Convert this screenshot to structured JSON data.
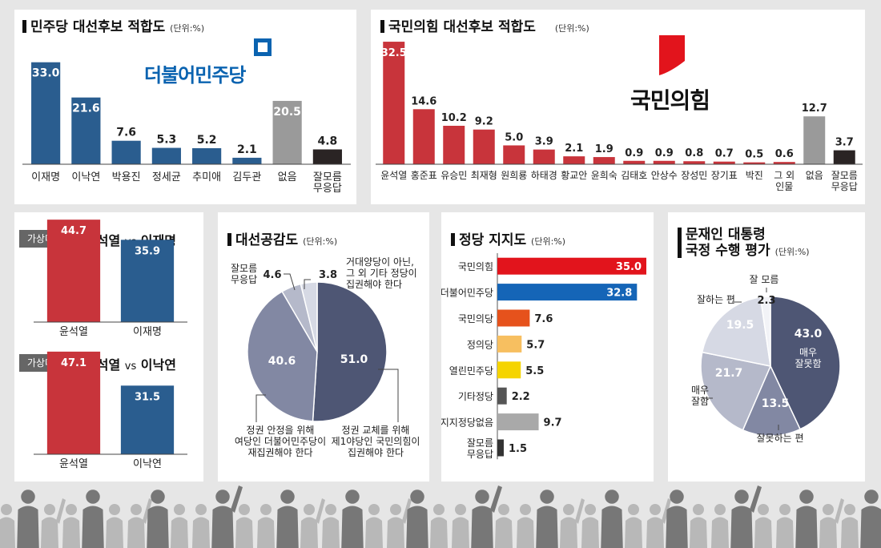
{
  "unit_label": "(단위:%)",
  "colors": {
    "dem_blue": "#2a5d8f",
    "ppp_red": "#c8343b",
    "none_gray": "#9a9a9a",
    "dk_black": "#2a2424",
    "pie_dark": "#4e5674",
    "pie_mid": "#8288a3",
    "pie_light1": "#b5b9ca",
    "pie_light2": "#d6d9e4"
  },
  "dem": {
    "title": "민주당 대선후보 적합도",
    "logo_text": "더불어민주당",
    "chart_data": {
      "type": "bar",
      "categories": [
        "이재명",
        "이낙연",
        "박용진",
        "정세균",
        "추미애",
        "김두관",
        "없음",
        "잘모름\n무응답"
      ],
      "values": [
        33.0,
        21.6,
        7.6,
        5.3,
        5.2,
        2.1,
        20.5,
        4.8
      ],
      "labels": [
        "33.0",
        "21.6",
        "7.6",
        "5.3",
        "5.2",
        "2.1",
        "20.5",
        "4.8"
      ],
      "colors": [
        "#2a5d8f",
        "#2a5d8f",
        "#2a5d8f",
        "#2a5d8f",
        "#2a5d8f",
        "#2a5d8f",
        "#9a9a9a",
        "#2a2424"
      ],
      "ylim": [
        0,
        35
      ]
    }
  },
  "ppp": {
    "title": "국민의힘 대선후보 적합도",
    "logo_text": "국민의힘",
    "chart_data": {
      "type": "bar",
      "categories": [
        "윤석열",
        "홍준표",
        "유승민",
        "최재형",
        "원희룡",
        "하태경",
        "황교안",
        "윤희숙",
        "김태호",
        "안상수",
        "장성민",
        "장기표",
        "박진",
        "그 외\n인물",
        "없음",
        "잘모름\n무응답"
      ],
      "values": [
        32.5,
        14.6,
        10.2,
        9.2,
        5.0,
        3.9,
        2.1,
        1.9,
        0.9,
        0.9,
        0.8,
        0.7,
        0.5,
        0.6,
        12.7,
        3.7
      ],
      "labels": [
        "32.5",
        "14.6",
        "10.2",
        "9.2",
        "5.0",
        "3.9",
        "2.1",
        "1.9",
        "0.9",
        "0.9",
        "0.8",
        "0.7",
        "0.5",
        "0.6",
        "12.7",
        "3.7"
      ],
      "colors": [
        "#c8343b",
        "#c8343b",
        "#c8343b",
        "#c8343b",
        "#c8343b",
        "#c8343b",
        "#c8343b",
        "#c8343b",
        "#c8343b",
        "#c8343b",
        "#c8343b",
        "#c8343b",
        "#c8343b",
        "#c8343b",
        "#9a9a9a",
        "#2a2424"
      ],
      "ylim": [
        0,
        34
      ]
    }
  },
  "matchups": [
    {
      "tag": "가상대결1",
      "a": "윤석열",
      "vs": "vs",
      "b": "이재명",
      "chart_data": {
        "type": "bar",
        "categories": [
          "윤석열",
          "이재명"
        ],
        "values": [
          44.7,
          35.9
        ],
        "labels": [
          "44.7",
          "35.9"
        ],
        "colors": [
          "#c8343b",
          "#2a5d8f"
        ],
        "ylim": [
          0,
          50
        ]
      }
    },
    {
      "tag": "가상대결2",
      "a": "윤석열",
      "vs": "vs",
      "b": "이낙연",
      "chart_data": {
        "type": "bar",
        "categories": [
          "윤석열",
          "이낙연"
        ],
        "values": [
          47.1,
          31.5
        ],
        "labels": [
          "47.1",
          "31.5"
        ],
        "colors": [
          "#c8343b",
          "#2a5d8f"
        ],
        "ylim": [
          0,
          50
        ]
      }
    }
  ],
  "sympathy": {
    "title": "대선공감도",
    "chart_data": {
      "type": "pie",
      "slices": [
        {
          "label": "정권 교체를 위해\n제1야당인 국민의힘이\n집권해야 한다",
          "value": 51.0,
          "text": "51.0",
          "color": "#4e5674"
        },
        {
          "label": "정권 안정을 위해\n여당인 더불어민주당이\n재집권해야 한다",
          "value": 40.6,
          "text": "40.6",
          "color": "#8288a3"
        },
        {
          "label": "잘모름\n무응답",
          "value": 4.6,
          "text": "4.6",
          "color": "#b5b9ca"
        },
        {
          "label": "거대양당이 아닌,\n그 외 기타 정당이\n집권해야 한다",
          "value": 3.8,
          "text": "3.8",
          "color": "#d6d9e4"
        }
      ]
    }
  },
  "party": {
    "title": "정당 지지도",
    "chart_data": {
      "type": "bar",
      "orientation": "horizontal",
      "categories": [
        "국민의힘",
        "더불어민주당",
        "국민의당",
        "정의당",
        "열린민주당",
        "기타정당",
        "지지정당없음",
        "잘모름\n무응답"
      ],
      "values": [
        35.0,
        32.8,
        7.6,
        5.7,
        5.5,
        2.2,
        9.7,
        1.5
      ],
      "labels": [
        "35.0",
        "32.8",
        "7.6",
        "5.7",
        "5.5",
        "2.2",
        "9.7",
        "1.5"
      ],
      "colors": [
        "#e2141c",
        "#1565b7",
        "#e6521c",
        "#f7bf60",
        "#f5d400",
        "#555555",
        "#a9a9a9",
        "#333333"
      ],
      "xlim": [
        0,
        35
      ]
    }
  },
  "approval": {
    "title_line1": "문재인 대통령",
    "title_line2": "국정 수행 평가",
    "chart_data": {
      "type": "pie",
      "slices": [
        {
          "label": "매우\n잘못함",
          "value": 43.0,
          "text": "43.0",
          "color": "#4e5674"
        },
        {
          "label": "잘못하는 편",
          "value": 13.5,
          "text": "13.5",
          "color": "#8288a3"
        },
        {
          "label": "매우\n잘함",
          "value": 21.7,
          "text": "21.7",
          "color": "#b5b9ca"
        },
        {
          "label": "잘하는 편",
          "value": 19.5,
          "text": "19.5",
          "color": "#d6d9e4"
        },
        {
          "label": "잘 모름",
          "value": 2.3,
          "text": "2.3",
          "color": "#f2f3f7"
        }
      ]
    }
  }
}
